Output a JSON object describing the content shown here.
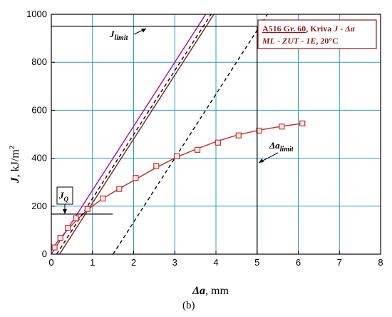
{
  "chart_data": {
    "type": "line",
    "xlabel_main": "Δa",
    "xlabel_unit": ",  mm",
    "ylabel_main": "J",
    "ylabel_unit": ",  kJ/m",
    "ylabel_sup": "2",
    "xlim": [
      0,
      8
    ],
    "ylim": [
      0,
      1000
    ],
    "xticks": [
      0,
      1,
      2,
      3,
      4,
      5,
      6,
      7,
      8
    ],
    "yticks": [
      0,
      200,
      400,
      600,
      800,
      1000
    ],
    "grid": true,
    "panel_label": "(b)",
    "legend": {
      "line1": [
        "A516 Gr. 60",
        ", Kriva ",
        "J",
        " - ",
        "Δa"
      ],
      "line2": [
        "ML",
        " - ",
        "ZUT",
        " - ",
        "1E",
        ",  20°C"
      ]
    },
    "annotations": {
      "j_limit": {
        "main": "J",
        "sub": "limit",
        "y": 950,
        "x_end": 5
      },
      "delta_a_limit": {
        "main": "Δa",
        "sub": "limit",
        "x": 5
      },
      "j_q": {
        "main": "J",
        "sub": "Q",
        "y": 167
      }
    },
    "series": [
      {
        "type": "points",
        "color": "#c0392b",
        "points": [
          [
            0.08,
            28
          ],
          [
            0.22,
            68
          ],
          [
            0.4,
            110
          ],
          [
            0.6,
            150
          ],
          [
            0.88,
            188
          ],
          [
            1.25,
            232
          ],
          [
            1.65,
            272
          ],
          [
            2.05,
            318
          ],
          [
            2.55,
            368
          ],
          [
            3.05,
            408
          ],
          [
            3.55,
            435
          ],
          [
            4.05,
            465
          ],
          [
            4.55,
            495
          ],
          [
            5.05,
            515
          ],
          [
            5.6,
            532
          ],
          [
            6.1,
            545
          ]
        ]
      },
      {
        "type": "curve",
        "color": "#c0392b",
        "points": [
          [
            0,
            18
          ],
          [
            0.2,
            63
          ],
          [
            0.4,
            103
          ],
          [
            0.6,
            140
          ],
          [
            0.88,
            185
          ],
          [
            1.25,
            232
          ],
          [
            1.65,
            273
          ],
          [
            2.05,
            312
          ],
          [
            2.55,
            361
          ],
          [
            3.05,
            405
          ],
          [
            3.55,
            440
          ],
          [
            4.05,
            472
          ],
          [
            4.55,
            498
          ],
          [
            5.05,
            517
          ],
          [
            5.6,
            533
          ],
          [
            6.1,
            545
          ]
        ]
      },
      {
        "type": "line",
        "color": "#b300b3",
        "dash": false,
        "points": [
          [
            0,
            0
          ],
          [
            3.75,
            1000
          ]
        ]
      },
      {
        "type": "line",
        "color": "#000000",
        "dash": true,
        "points": [
          [
            0.13,
            0
          ],
          [
            3.88,
            1000
          ]
        ]
      },
      {
        "type": "line",
        "color": "#8b1a1a",
        "dash": false,
        "points": [
          [
            0.2,
            0
          ],
          [
            3.95,
            1000
          ]
        ]
      },
      {
        "type": "line",
        "color": "#000000",
        "dash": true,
        "points": [
          [
            1.5,
            0
          ],
          [
            5.25,
            1000
          ]
        ]
      }
    ]
  }
}
